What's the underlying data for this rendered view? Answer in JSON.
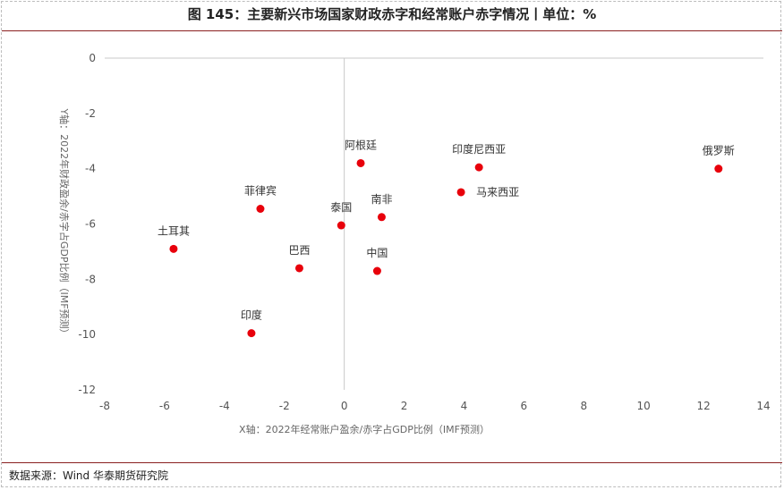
{
  "header": {
    "title": "图 145：主要新兴市场国家财政赤字和经常账户赤字情况丨单位：%"
  },
  "footer": {
    "source": "数据来源：Wind  华泰期货研究院"
  },
  "chart_data": {
    "type": "scatter",
    "title": "图 145：主要新兴市场国家财政赤字和经常账户赤字情况丨单位：%",
    "xlabel": "X轴：2022年经常账户盈余/赤字占GDP比例（IMF预测）",
    "ylabel": "Y轴：2022年财政盈余/赤字占GDP比例（IMF预测）",
    "xlim": [
      -8,
      14
    ],
    "ylim": [
      -12,
      0
    ],
    "xticks": [
      "-8",
      "-6",
      "-4",
      "-2",
      "0",
      "2",
      "4",
      "6",
      "8",
      "10",
      "12",
      "14"
    ],
    "yticks": [
      "0",
      "-2",
      "-4",
      "-6",
      "-8",
      "-10",
      "-12"
    ],
    "grid": false,
    "marker_color": "#e8000b",
    "points": [
      {
        "label": "土耳其",
        "x": -5.7,
        "y": -6.9
      },
      {
        "label": "菲律宾",
        "x": -2.8,
        "y": -5.45
      },
      {
        "label": "巴西",
        "x": -1.5,
        "y": -7.6
      },
      {
        "label": "印度",
        "x": -3.1,
        "y": -9.95
      },
      {
        "label": "泰国",
        "x": -0.1,
        "y": -6.05
      },
      {
        "label": "阿根廷",
        "x": 0.55,
        "y": -3.8
      },
      {
        "label": "南非",
        "x": 1.25,
        "y": -5.75
      },
      {
        "label": "中国",
        "x": 1.1,
        "y": -7.7
      },
      {
        "label": "印度尼西亚",
        "x": 4.5,
        "y": -3.95
      },
      {
        "label": "马来西亚",
        "x": 3.9,
        "y": -4.85
      },
      {
        "label": "俄罗斯",
        "x": 12.5,
        "y": -4.0
      }
    ]
  }
}
